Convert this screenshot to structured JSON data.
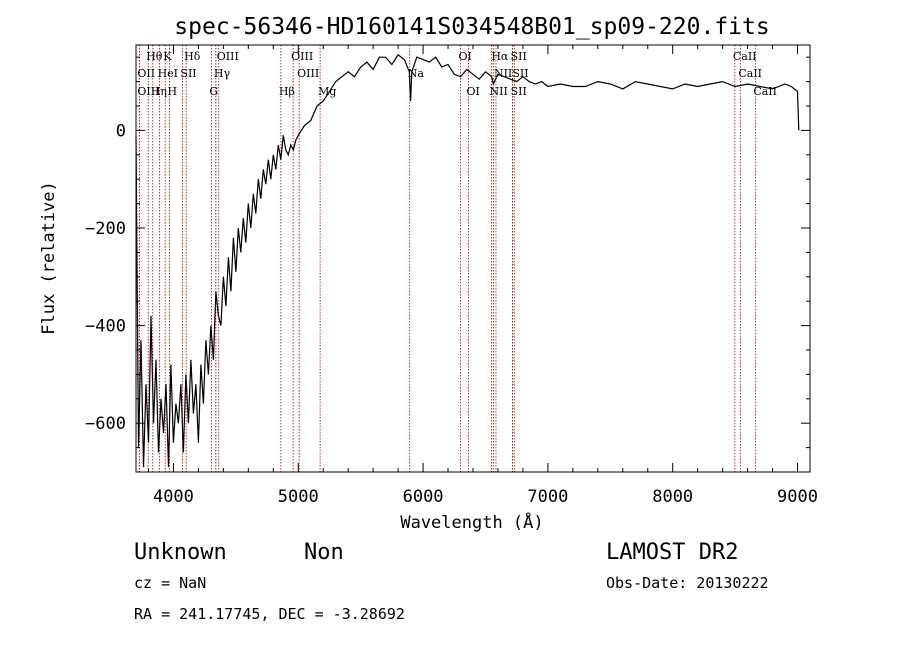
{
  "chart_data": {
    "type": "line",
    "title": "spec-56346-HD160141S034548B01_sp09-220.fits",
    "xlabel": "Wavelength (Å)",
    "ylabel": "Flux (relative)",
    "xlim": [
      3700,
      9100
    ],
    "ylim": [
      -700,
      175
    ],
    "x_ticks": [
      4000,
      5000,
      6000,
      7000,
      8000,
      9000
    ],
    "y_ticks": [
      -600,
      -400,
      -200,
      0
    ],
    "grid": false,
    "legend": "none",
    "spectrum": {
      "x": [
        3700,
        3720,
        3740,
        3760,
        3780,
        3800,
        3820,
        3840,
        3860,
        3880,
        3900,
        3920,
        3940,
        3960,
        3980,
        4000,
        4020,
        4040,
        4060,
        4080,
        4100,
        4120,
        4140,
        4160,
        4180,
        4200,
        4220,
        4240,
        4260,
        4280,
        4300,
        4320,
        4340,
        4360,
        4380,
        4400,
        4420,
        4440,
        4460,
        4480,
        4500,
        4520,
        4540,
        4560,
        4580,
        4600,
        4620,
        4640,
        4660,
        4680,
        4700,
        4720,
        4740,
        4760,
        4780,
        4800,
        4820,
        4840,
        4860,
        4880,
        4900,
        4920,
        4940,
        4960,
        4980,
        5000,
        5050,
        5100,
        5150,
        5200,
        5250,
        5300,
        5350,
        5400,
        5450,
        5500,
        5550,
        5600,
        5650,
        5700,
        5750,
        5800,
        5850,
        5890,
        5900,
        5910,
        5950,
        6000,
        6050,
        6100,
        6150,
        6200,
        6250,
        6300,
        6350,
        6400,
        6450,
        6500,
        6550,
        6563,
        6600,
        6650,
        6700,
        6750,
        6800,
        6850,
        6900,
        6950,
        7000,
        7100,
        7200,
        7300,
        7400,
        7500,
        7600,
        7700,
        7800,
        7900,
        8000,
        8100,
        8200,
        8300,
        8400,
        8500,
        8600,
        8700,
        8800,
        8900,
        8950,
        9000,
        9010
      ],
      "y": [
        -10,
        -650,
        -430,
        -690,
        -520,
        -640,
        -380,
        -600,
        -470,
        -660,
        -550,
        -620,
        -520,
        -690,
        -480,
        -640,
        -560,
        -600,
        -520,
        -660,
        -500,
        -600,
        -470,
        -580,
        -520,
        -640,
        -480,
        -560,
        -430,
        -500,
        -400,
        -470,
        -330,
        -380,
        -400,
        -300,
        -360,
        -260,
        -330,
        -220,
        -290,
        -200,
        -250,
        -180,
        -230,
        -150,
        -200,
        -130,
        -170,
        -100,
        -140,
        -80,
        -110,
        -60,
        -100,
        -50,
        -80,
        -30,
        -60,
        -10,
        -40,
        -50,
        -30,
        -40,
        -20,
        -10,
        10,
        20,
        50,
        60,
        80,
        100,
        110,
        120,
        110,
        130,
        140,
        125,
        150,
        150,
        135,
        155,
        145,
        120,
        60,
        120,
        150,
        145,
        140,
        150,
        130,
        135,
        115,
        110,
        125,
        115,
        105,
        120,
        110,
        95,
        115,
        110,
        105,
        100,
        110,
        100,
        95,
        100,
        90,
        95,
        90,
        90,
        100,
        95,
        85,
        100,
        95,
        90,
        85,
        95,
        90,
        95,
        100,
        90,
        95,
        90,
        85,
        95,
        90,
        80,
        0
      ]
    },
    "line_markers": [
      {
        "label": "Hθ",
        "x": 3798,
        "row": 0
      },
      {
        "label": "K",
        "x": 3934,
        "row": 0
      },
      {
        "label": "Hδ",
        "x": 4102,
        "row": 0
      },
      {
        "label": "OIII",
        "x": 4363,
        "row": 0
      },
      {
        "label": "OIII",
        "x": 4959,
        "row": 0
      },
      {
        "label": "OI",
        "x": 6300,
        "row": 0
      },
      {
        "label": "Hα",
        "x": 6563,
        "row": 0
      },
      {
        "label": "SII",
        "x": 6717,
        "row": 0
      },
      {
        "label": "CaII",
        "x": 8498,
        "row": 0
      },
      {
        "label": "OII",
        "x": 3727,
        "row": 1
      },
      {
        "label": "HeI",
        "x": 3889,
        "row": 1
      },
      {
        "label": "SII",
        "x": 4072,
        "row": 1
      },
      {
        "label": "Hγ",
        "x": 4340,
        "row": 1
      },
      {
        "label": "OIII",
        "x": 5007,
        "row": 1
      },
      {
        "label": "Na",
        "x": 5893,
        "row": 1
      },
      {
        "label": "NII",
        "x": 6584,
        "row": 1
      },
      {
        "label": "SII",
        "x": 6731,
        "row": 1
      },
      {
        "label": "CaII",
        "x": 8542,
        "row": 1
      },
      {
        "label": "OIII",
        "x": 3727,
        "row": 2
      },
      {
        "label": "Hη",
        "x": 3835,
        "row": 2
      },
      {
        "label": "H",
        "x": 3968,
        "row": 2
      },
      {
        "label": "G",
        "x": 4304,
        "row": 2
      },
      {
        "label": "Hβ",
        "x": 4861,
        "row": 2
      },
      {
        "label": "Mg",
        "x": 5175,
        "row": 2
      },
      {
        "label": "OI",
        "x": 6364,
        "row": 2
      },
      {
        "label": "NII",
        "x": 6548,
        "row": 2
      },
      {
        "label": "SII",
        "x": 6717,
        "row": 2
      },
      {
        "label": "CaII",
        "x": 8662,
        "row": 2
      }
    ]
  },
  "info": {
    "class": "Unknown",
    "subclass": "Non",
    "cz": "cz = NaN",
    "coords": "RA = 241.17745, DEC =  -3.28692",
    "survey": "LAMOST DR2",
    "obs_date": "Obs-Date: 20130222"
  },
  "colors": {
    "spectrum": "#000000",
    "marker": "#aa0000"
  }
}
